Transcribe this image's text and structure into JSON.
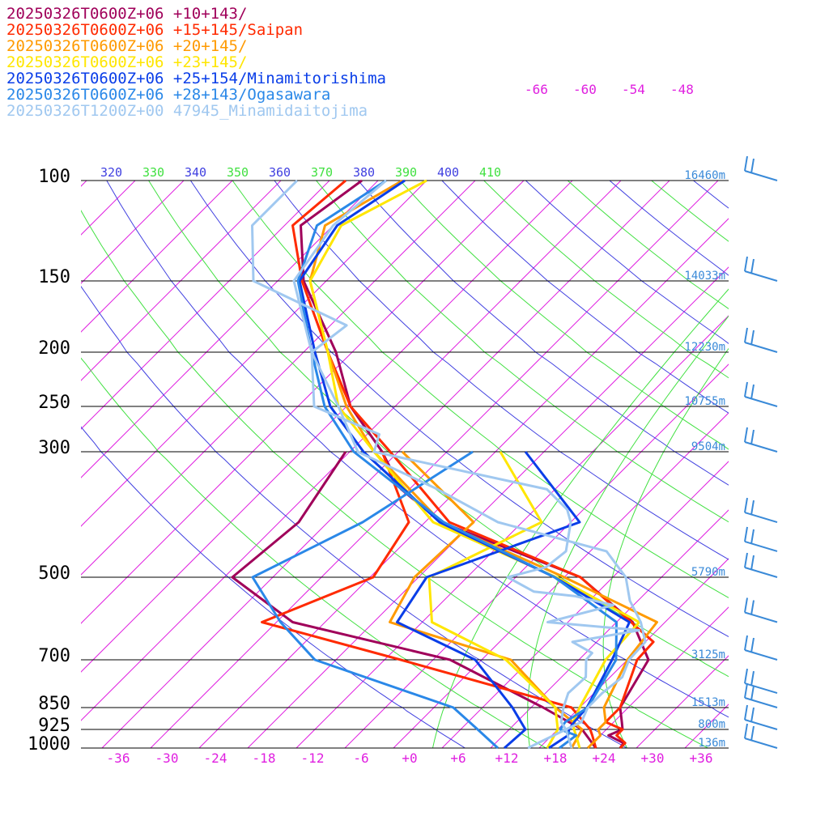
{
  "legend": [
    {
      "label": "20250326T0600Z+06 +10+143/",
      "color": "#a0005a"
    },
    {
      "label": "20250326T0600Z+06 +15+145/Saipan",
      "color": "#ff2a00"
    },
    {
      "label": "20250326T0600Z+06 +20+145/",
      "color": "#ff9a00"
    },
    {
      "label": "20250326T0600Z+06 +23+145/",
      "color": "#ffe600"
    },
    {
      "label": "20250326T0600Z+06 +25+154/Minamitorishima",
      "color": "#0a3ee8"
    },
    {
      "label": "20250326T0600Z+06 +28+143/Ogasawara",
      "color": "#2a88e8"
    },
    {
      "label": "20250326T1200Z+00 47945_Minamidaitojima",
      "color": "#a0c8f0"
    }
  ],
  "chart_data": {
    "type": "line",
    "diagram": "skew-T log-p",
    "title": "",
    "xlabel": "",
    "ylabel": "",
    "x_unit": "degC",
    "xlim": [
      -40,
      40
    ],
    "ylim_hpa": [
      1000,
      100
    ],
    "log_pressure_axis": true,
    "pressure_ticks": [
      100,
      150,
      200,
      250,
      300,
      500,
      700,
      850,
      925,
      1000
    ],
    "pressure_tick_labels": [
      "100",
      "150",
      "200",
      "250",
      "300",
      "500",
      "700",
      "850",
      "925",
      "1000"
    ],
    "temperature_ticks": [
      -36,
      -30,
      -24,
      -18,
      -12,
      -6,
      0,
      6,
      12,
      18,
      24,
      30,
      36
    ],
    "temperature_tick_labels": [
      "-36",
      "-30",
      "-24",
      "-18",
      "-12",
      "-6",
      "+0",
      "+6",
      "+12",
      "+18",
      "+24",
      "+30",
      "+36"
    ],
    "isotherm_top_labels": [
      "-66",
      "-60",
      "-54",
      "-48"
    ],
    "theta_labels": [
      "320",
      "330",
      "340",
      "350",
      "360",
      "370",
      "380",
      "390",
      "400",
      "410"
    ],
    "height_labels": [
      {
        "p": 100,
        "label": "16460m"
      },
      {
        "p": 150,
        "label": "14033m"
      },
      {
        "p": 200,
        "label": "12230m"
      },
      {
        "p": 250,
        "label": "10755m"
      },
      {
        "p": 300,
        "label": "9504m"
      },
      {
        "p": 500,
        "label": "5790m"
      },
      {
        "p": 700,
        "label": "3125m"
      },
      {
        "p": 850,
        "label": "1513m"
      },
      {
        "p": 925,
        "label": "800m"
      },
      {
        "p": 1000,
        "label": "136m"
      }
    ],
    "grid": true,
    "legend_position": "top-left",
    "series": [
      {
        "name": "20250326T0600Z+06 +10+143/",
        "color": "#a0005a",
        "kind": "temperature",
        "points": [
          [
            1000,
            26
          ],
          [
            980,
            25.8
          ],
          [
            950,
            23
          ],
          [
            925,
            24
          ],
          [
            900,
            23
          ],
          [
            850,
            21
          ],
          [
            700,
            18.6
          ],
          [
            600,
            12
          ],
          [
            500,
            0
          ],
          [
            400,
            -24
          ],
          [
            350,
            -33
          ],
          [
            300,
            -40
          ],
          [
            250,
            -49.5
          ],
          [
            200,
            -58
          ],
          [
            150,
            -70.8
          ],
          [
            120,
            -78
          ],
          [
            100,
            -76
          ]
        ]
      },
      {
        "name": "20250326T0600Z+06 +10+143/",
        "color": "#a0005a",
        "kind": "dewpoint",
        "points": [
          [
            1000,
            23
          ],
          [
            925,
            19
          ],
          [
            850,
            11.5
          ],
          [
            700,
            -5.9
          ],
          [
            600,
            -30
          ],
          [
            500,
            -43
          ],
          [
            400,
            -41.6
          ],
          [
            300,
            -44.5
          ]
        ]
      },
      {
        "name": "20250326T0600Z+06 +15+145/Saipan",
        "color": "#ff2a00",
        "kind": "temperature",
        "points": [
          [
            1000,
            26
          ],
          [
            980,
            26
          ],
          [
            950,
            24
          ],
          [
            925,
            24
          ],
          [
            900,
            21
          ],
          [
            850,
            21
          ],
          [
            700,
            17.2
          ],
          [
            650,
            17
          ],
          [
            500,
            0
          ],
          [
            400,
            -23
          ],
          [
            300,
            -39
          ],
          [
            250,
            -49.5
          ],
          [
            200,
            -59
          ],
          [
            150,
            -71
          ],
          [
            120,
            -79
          ],
          [
            100,
            -78
          ]
        ]
      },
      {
        "name": "20250326T0600Z+06 +15+145/Saipan",
        "color": "#ff2a00",
        "kind": "dewpoint",
        "points": [
          [
            1000,
            23
          ],
          [
            950,
            21
          ],
          [
            925,
            20
          ],
          [
            850,
            15
          ],
          [
            700,
            -12
          ],
          [
            600,
            -33.8
          ],
          [
            500,
            -25.6
          ],
          [
            400,
            -28
          ],
          [
            300,
            -40
          ]
        ]
      },
      {
        "name": "20250326T0600Z+06 +20+145/",
        "color": "#ff9a00",
        "kind": "temperature",
        "points": [
          [
            1000,
            22
          ],
          [
            950,
            22
          ],
          [
            925,
            21
          ],
          [
            900,
            21
          ],
          [
            850,
            19
          ],
          [
            700,
            16
          ],
          [
            600,
            15
          ],
          [
            500,
            -2
          ],
          [
            400,
            -24
          ],
          [
            300,
            -41
          ],
          [
            250,
            -50
          ],
          [
            200,
            -59
          ],
          [
            150,
            -70
          ],
          [
            120,
            -75
          ],
          [
            100,
            -71
          ]
        ]
      },
      {
        "name": "20250326T0600Z+06 +20+145/",
        "color": "#ff9a00",
        "kind": "dewpoint",
        "points": [
          [
            1000,
            20
          ],
          [
            925,
            19
          ],
          [
            850,
            13
          ],
          [
            700,
            1.6
          ],
          [
            600,
            -18
          ],
          [
            500,
            -20.5
          ],
          [
            400,
            -20
          ],
          [
            300,
            -37.5
          ]
        ]
      },
      {
        "name": "20250326T0600Z+06 +23+145/",
        "color": "#ffe600",
        "kind": "temperature",
        "points": [
          [
            1000,
            21
          ],
          [
            950,
            19
          ],
          [
            925,
            18
          ],
          [
            900,
            17
          ],
          [
            850,
            16
          ],
          [
            700,
            13.3
          ],
          [
            600,
            12.8
          ],
          [
            500,
            -3
          ],
          [
            400,
            -25
          ],
          [
            300,
            -41
          ],
          [
            250,
            -51
          ],
          [
            200,
            -59
          ],
          [
            150,
            -70
          ],
          [
            120,
            -73
          ],
          [
            100,
            -68
          ]
        ]
      },
      {
        "name": "20250326T0600Z+06 +23+145/",
        "color": "#ffe600",
        "kind": "dewpoint",
        "points": [
          [
            1000,
            17
          ],
          [
            925,
            16
          ],
          [
            850,
            13
          ],
          [
            700,
            1
          ],
          [
            600,
            -12.8
          ],
          [
            500,
            -18.7
          ],
          [
            400,
            -11.6
          ],
          [
            300,
            -25.4
          ]
        ]
      },
      {
        "name": "20250326T0600Z+06 +25+154/Minamitorishima",
        "color": "#0a3ee8",
        "kind": "temperature",
        "points": [
          [
            1000,
            17.2
          ],
          [
            950,
            18
          ],
          [
            925,
            17.4
          ],
          [
            900,
            17.1
          ],
          [
            850,
            16.9
          ],
          [
            700,
            14.1
          ],
          [
            600,
            11.6
          ],
          [
            500,
            -3.2
          ],
          [
            400,
            -24.2
          ],
          [
            300,
            -42.3
          ],
          [
            250,
            -52
          ],
          [
            200,
            -60.6
          ],
          [
            150,
            -71.3
          ],
          [
            120,
            -73.5
          ],
          [
            100,
            -70.7
          ]
        ]
      },
      {
        "name": "20250326T0600Z+06 +25+154/Minamitorishima",
        "color": "#0a3ee8",
        "kind": "dewpoint",
        "points": [
          [
            1000,
            11.7
          ],
          [
            925,
            12
          ],
          [
            850,
            7.7
          ],
          [
            700,
            -2.8
          ],
          [
            600,
            -17.1
          ],
          [
            500,
            -19
          ],
          [
            400,
            -6.9
          ],
          [
            300,
            -22.3
          ]
        ]
      },
      {
        "name": "20250326T0600Z+06 +28+143/Ogasawara",
        "color": "#2a88e8",
        "kind": "temperature",
        "points": [
          [
            1000,
            18.5
          ],
          [
            950,
            19
          ],
          [
            925,
            16.3
          ],
          [
            900,
            16
          ],
          [
            850,
            17
          ],
          [
            700,
            14.6
          ],
          [
            600,
            10
          ],
          [
            500,
            -3.2
          ],
          [
            400,
            -23.7
          ],
          [
            300,
            -43.5
          ],
          [
            250,
            -52.7
          ],
          [
            200,
            -61
          ],
          [
            150,
            -71.5
          ],
          [
            120,
            -76
          ],
          [
            100,
            -73
          ]
        ]
      },
      {
        "name": "20250326T0600Z+06 +28+143/Ogasawara",
        "color": "#2a88e8",
        "kind": "dewpoint",
        "points": [
          [
            1000,
            10.9
          ],
          [
            925,
            6.1
          ],
          [
            850,
            0.4
          ],
          [
            700,
            -22.6
          ],
          [
            600,
            -31.5
          ],
          [
            500,
            -40.5
          ],
          [
            400,
            -33.7
          ],
          [
            300,
            -28.8
          ]
        ]
      },
      {
        "name": "20250326T1200Z+00 47945_Minamidaitojima",
        "color": "#a0c8f0",
        "kind": "temperature",
        "points": [
          [
            1000,
            20
          ],
          [
            925,
            17
          ],
          [
            900,
            18
          ],
          [
            850,
            17
          ],
          [
            800,
            17
          ],
          [
            750,
            17.5
          ],
          [
            700,
            16.2
          ],
          [
            650,
            16
          ],
          [
            600,
            13
          ],
          [
            550,
            9
          ],
          [
            500,
            5.6
          ],
          [
            450,
            0
          ],
          [
            400,
            -17
          ],
          [
            350,
            -28.5
          ],
          [
            300,
            -43
          ],
          [
            250,
            -51
          ],
          [
            200,
            -61
          ],
          [
            150,
            -72
          ],
          [
            120,
            -74
          ],
          [
            100,
            -73
          ]
        ]
      },
      {
        "name": "20250326T1200Z+00 47945_Minamidaitojima",
        "color": "#a0c8f0",
        "kind": "dewpoint",
        "points": [
          [
            1000,
            14.6
          ],
          [
            925,
            17
          ],
          [
            900,
            15.5
          ],
          [
            850,
            14
          ],
          [
            800,
            12.8
          ],
          [
            750,
            13
          ],
          [
            700,
            10.9
          ],
          [
            680,
            10.8
          ],
          [
            650,
            7
          ],
          [
            620,
            13.8
          ],
          [
            600,
            1.5
          ],
          [
            560,
            7.5
          ],
          [
            540,
            1.7
          ],
          [
            530,
            -4
          ],
          [
            500,
            -9
          ],
          [
            480,
            -5.5
          ],
          [
            450,
            -5
          ],
          [
            400,
            -8
          ],
          [
            380,
            -10
          ],
          [
            350,
            -15
          ],
          [
            300,
            -41
          ],
          [
            280,
            -42.5
          ],
          [
            250,
            -54
          ],
          [
            200,
            -61
          ],
          [
            180,
            -60
          ],
          [
            150,
            -77
          ],
          [
            120,
            -84
          ],
          [
            100,
            -84
          ]
        ]
      }
    ]
  }
}
